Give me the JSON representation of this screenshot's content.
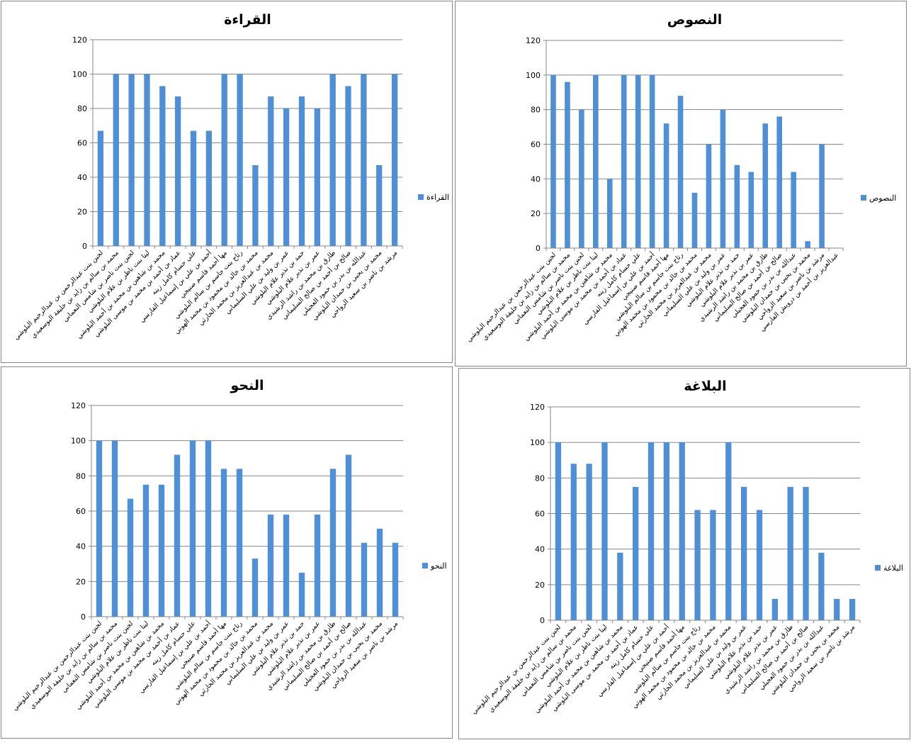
{
  "categories": [
    "لجين بنت عبدالرحمن بن عبدالرحيم البلوشي",
    "محمد بن سالم بن زايد بن خليفة البوسعيدي",
    "لجين بنت ناصر بن شامس النعماني",
    "لينا بنت ناظر بن علام البلوشي",
    "محمد بن شاهين بن محمد بن أحمد البلوشي",
    "عماد بن أحمد بن محمد بن موسى البلوشي",
    "علي حسام كامل زينه",
    "أحمد بن علي بن إسماعيل الفارسي",
    "مها أحمد قاسم صنيجي",
    "رتاج بنت جاسم بن سالم البلوشي",
    "محمد بن خالد بن محمود بن محمد الهوتي",
    "محمد بن عبدالعزيز بن محمد الخارثي",
    "عمر بن وليد بن علي السليماني",
    "حمد بن نذير علام البلوشي",
    "عمر بن نذير علام البلوشي",
    "طارق بن محمد بن راشد الرشيدي",
    "صالح بن أحمد بن صالح السليماني",
    "عبدالله بن بدر بن حمود العجيلي",
    "محمد بن يحيى بن حمدان البلوشي",
    "مرشد بن ناصر بن سعيد الرواحي",
    "عبدالعزيز بن أحمد بن درويش الفارسي"
  ],
  "charts_text": {
    "reading_title": "القراءة",
    "texts_title": "النصوص",
    "grammar_title": "النحو",
    "rhetoric_title": "البلاغة"
  },
  "colors": {
    "bar": "#4f8fd6",
    "grid": "#878787"
  },
  "chart_data": [
    {
      "id": "reading",
      "type": "bar",
      "title": "القراءة",
      "legend": {
        "label": "القراءة",
        "placement": "right"
      },
      "categories_ref": "categories",
      "categories_shown": 20,
      "values": [
        67,
        100,
        100,
        100,
        93,
        87,
        67,
        67,
        100,
        100,
        47,
        87,
        80,
        87,
        80,
        100,
        93,
        100,
        47,
        100
      ],
      "ylim": [
        0,
        120
      ],
      "yticks": [
        0,
        20,
        40,
        60,
        80,
        100,
        120
      ],
      "grid": true
    },
    {
      "id": "texts",
      "type": "bar",
      "title": "النصوص",
      "legend": {
        "label": "النصوص",
        "placement": "right"
      },
      "categories_ref": "categories",
      "categories_shown": 21,
      "values": [
        100,
        96,
        80,
        100,
        40,
        100,
        100,
        100,
        72,
        88,
        32,
        60,
        80,
        48,
        44,
        72,
        76,
        44,
        4,
        60,
        null
      ],
      "ylim": [
        0,
        120
      ],
      "yticks": [
        0,
        20,
        40,
        60,
        80,
        100,
        120
      ],
      "grid": true
    },
    {
      "id": "grammar",
      "type": "bar",
      "title": "النحو",
      "legend": {
        "label": "النحو",
        "placement": "right"
      },
      "categories_ref": "categories",
      "categories_shown": 20,
      "values": [
        100,
        100,
        67,
        75,
        75,
        92,
        100,
        100,
        84,
        84,
        33,
        58,
        58,
        25,
        58,
        84,
        92,
        42,
        50,
        42
      ],
      "ylim": [
        0,
        120
      ],
      "yticks": [
        0,
        20,
        40,
        60,
        80,
        100,
        120
      ],
      "grid": true
    },
    {
      "id": "rhetoric",
      "type": "bar",
      "title": "البلاغة",
      "legend": {
        "label": "البلاغة",
        "placement": "right"
      },
      "categories_ref": "categories",
      "categories_shown": 20,
      "values": [
        100,
        88,
        88,
        100,
        38,
        75,
        100,
        100,
        100,
        62,
        62,
        100,
        75,
        62,
        12,
        75,
        75,
        38,
        12,
        12
      ],
      "ylim": [
        0,
        120
      ],
      "yticks": [
        0,
        20,
        40,
        60,
        80,
        100,
        120
      ],
      "grid": true
    }
  ]
}
